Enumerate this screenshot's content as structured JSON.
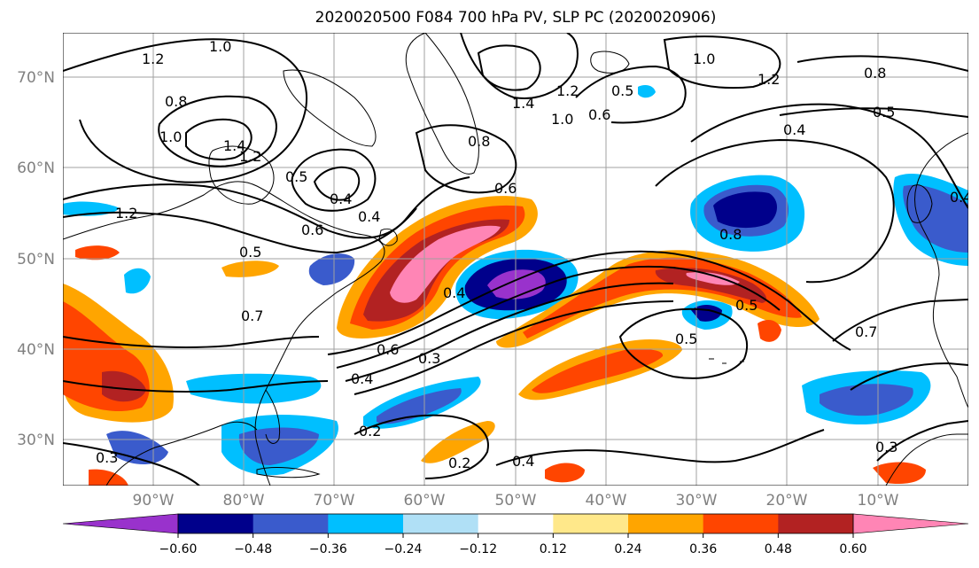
{
  "title": "2020020500 F084 700 hPa PV, SLP PC (2020020906)",
  "lat_labels": [
    "70°N",
    "60°N",
    "50°N",
    "40°N",
    "30°N"
  ],
  "lon_labels": [
    "90°W",
    "80°W",
    "70°W",
    "60°W",
    "50°W",
    "40°W",
    "30°W",
    "20°W",
    "10°W"
  ],
  "colorbar": {
    "ticks": [
      "−0.60",
      "−0.48",
      "−0.36",
      "−0.24",
      "−0.12",
      "0.12",
      "0.24",
      "0.36",
      "0.48",
      "0.60"
    ],
    "colors": [
      "#9932cc",
      "#00008b",
      "#3a5bcc",
      "#00bfff",
      "#b0e0f6",
      "#ffffff",
      "#ffe88a",
      "#ffa500",
      "#ff4500",
      "#b22222",
      "#ff85b5"
    ]
  },
  "contour_labels": [
    "1.0",
    "1.2",
    "0.8",
    "1.0",
    "1.4",
    "1.2",
    "1.2",
    "0.5",
    "0.4",
    "0.6",
    "0.5",
    "0.4",
    "0.6",
    "0.8",
    "1.4",
    "1.0",
    "1.2",
    "0.6",
    "0.5",
    "1.0",
    "1.2",
    "0.8",
    "0.5",
    "0.4",
    "0.8",
    "0.5",
    "0.7",
    "0.5",
    "0.4",
    "0.6",
    "0.3",
    "0.4",
    "0.2",
    "0.2",
    "0.4",
    "0.3",
    "0.3",
    "0.7",
    "0.4"
  ],
  "map": {
    "domain": "North Atlantic / North America",
    "fields": [
      "700 hPa PV (shaded)",
      "SLP PC (contours)"
    ]
  }
}
